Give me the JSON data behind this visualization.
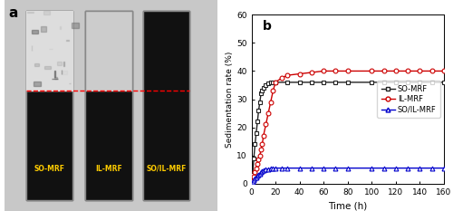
{
  "title_label": "b",
  "photo_label": "a",
  "xlabel": "Time (h)",
  "ylabel": "Sedimentation rate (%)",
  "ylim": [
    0,
    60
  ],
  "xlim": [
    0,
    160
  ],
  "yticks": [
    0,
    10,
    20,
    30,
    40,
    50,
    60
  ],
  "xticks": [
    0,
    20,
    40,
    60,
    80,
    100,
    120,
    140,
    160
  ],
  "SO_MRF": {
    "time_line": [
      0,
      0.5,
      1,
      1.5,
      2,
      3,
      4,
      5,
      6,
      7,
      8,
      9,
      10,
      12,
      14,
      16,
      18,
      20,
      25,
      30,
      40,
      50,
      60,
      70,
      80,
      100,
      120,
      140,
      160
    ],
    "rate_line": [
      0,
      1,
      3,
      6,
      9,
      14,
      18,
      22,
      26,
      29,
      32,
      33,
      34,
      35,
      35.5,
      36,
      36,
      36,
      36,
      36,
      36,
      36,
      36,
      36,
      36,
      36,
      36,
      36,
      36
    ],
    "time_marker": [
      0,
      1,
      2,
      3,
      4,
      5,
      6,
      7,
      8,
      9,
      10,
      12,
      14,
      16,
      18,
      20,
      30,
      40,
      50,
      60,
      70,
      80,
      100,
      110,
      120,
      130,
      140,
      150,
      160
    ],
    "rate_marker": [
      0,
      3,
      9,
      14,
      18,
      22,
      26,
      29,
      32,
      33,
      34,
      35,
      35.5,
      36,
      36,
      36,
      36,
      36,
      36,
      36,
      36,
      36,
      36,
      36,
      36,
      36,
      36,
      36,
      36
    ],
    "color": "#222222",
    "marker": "s",
    "label": "SO-MRF"
  },
  "IL_MRF": {
    "time_line": [
      0,
      0.5,
      1,
      1.5,
      2,
      3,
      4,
      5,
      6,
      7,
      8,
      9,
      10,
      12,
      14,
      16,
      18,
      20,
      25,
      30,
      40,
      50,
      60,
      70,
      80,
      100,
      120,
      140,
      160
    ],
    "rate_line": [
      0,
      0.5,
      1,
      1.5,
      2.5,
      4,
      5.5,
      7,
      8.5,
      10,
      12,
      14,
      17,
      21,
      25,
      29,
      33,
      36,
      37.5,
      38.5,
      39,
      39.5,
      40,
      40,
      40,
      40,
      40,
      40,
      40
    ],
    "time_marker": [
      0,
      1,
      2,
      3,
      4,
      5,
      6,
      7,
      8,
      9,
      10,
      12,
      14,
      16,
      18,
      20,
      25,
      30,
      40,
      50,
      60,
      70,
      80,
      100,
      110,
      120,
      130,
      140,
      150,
      160
    ],
    "rate_marker": [
      0,
      1,
      2.5,
      4,
      5.5,
      7,
      8.5,
      10,
      12,
      14,
      17,
      21,
      25,
      29,
      33,
      36,
      37.5,
      38.5,
      39,
      39.5,
      40,
      40,
      40,
      40,
      40,
      40,
      40,
      40,
      40,
      40
    ],
    "color": "#cc0000",
    "marker": "o",
    "label": "IL-MRF"
  },
  "SO_IL_MRF": {
    "time_line": [
      0,
      0.5,
      1,
      1.5,
      2,
      3,
      4,
      5,
      6,
      7,
      8,
      9,
      10,
      12,
      14,
      16,
      18,
      20,
      25,
      30,
      40,
      60,
      80,
      100,
      120,
      140,
      160
    ],
    "rate_line": [
      0,
      0.2,
      0.5,
      0.8,
      1.2,
      1.8,
      2.3,
      2.8,
      3.2,
      3.6,
      4.0,
      4.3,
      4.6,
      4.9,
      5.1,
      5.3,
      5.4,
      5.5,
      5.5,
      5.5,
      5.5,
      5.5,
      5.5,
      5.5,
      5.5,
      5.5,
      5.5
    ],
    "time_marker": [
      0,
      1,
      2,
      3,
      4,
      5,
      6,
      7,
      8,
      9,
      10,
      12,
      14,
      16,
      18,
      20,
      25,
      30,
      40,
      50,
      60,
      70,
      80,
      100,
      110,
      120,
      130,
      140,
      150,
      160
    ],
    "rate_marker": [
      0,
      0.5,
      1.2,
      1.8,
      2.3,
      2.8,
      3.2,
      3.6,
      4.0,
      4.3,
      4.6,
      4.9,
      5.1,
      5.3,
      5.4,
      5.5,
      5.5,
      5.5,
      5.5,
      5.5,
      5.5,
      5.5,
      5.5,
      5.5,
      5.5,
      5.5,
      5.5,
      5.5,
      5.5,
      5.5
    ],
    "color": "#0000cc",
    "marker": "^",
    "label": "SO/IL-MRF"
  },
  "vials": [
    {
      "label": "SO-MRF",
      "top_color": "#aaaaaa",
      "bottom_color": "#111111",
      "split": 0.42
    },
    {
      "label": "IL-MRF",
      "top_color": "#cccccc",
      "bottom_color": "#111111",
      "split": 0.42
    },
    {
      "label": "SO/IL-MRF",
      "top_color": "#111111",
      "bottom_color": "#111111",
      "split": 0.0
    }
  ],
  "red_line_y": 0.42,
  "bg_color": "#c8c8c8",
  "vial_border": "#888888"
}
